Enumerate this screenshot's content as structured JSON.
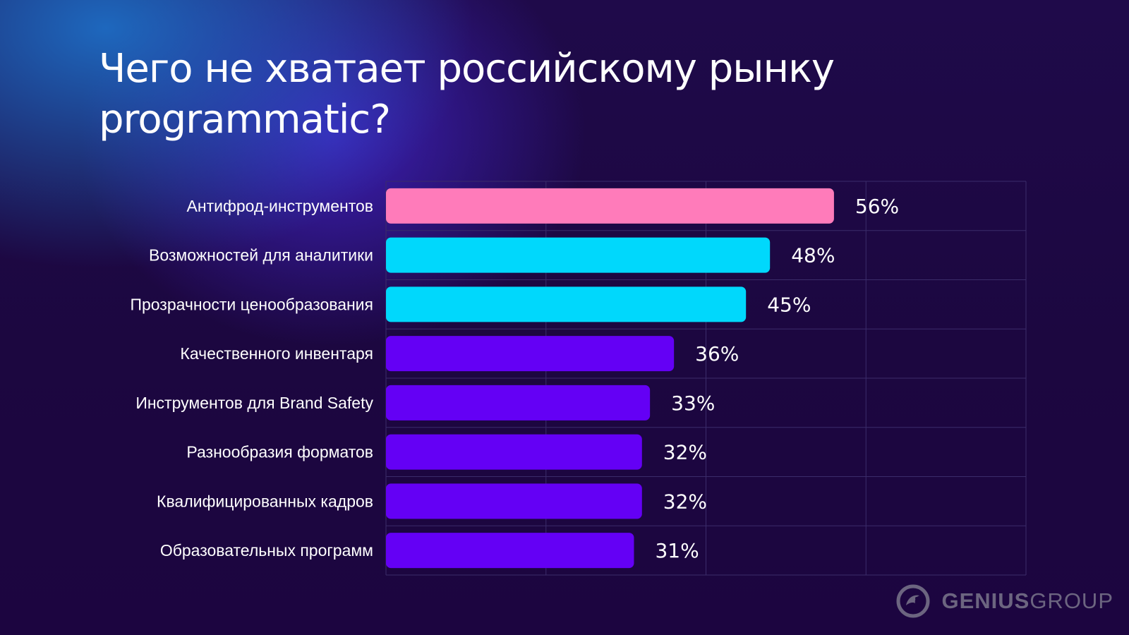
{
  "title": "Чего не хватает российскому рынку programmatic?",
  "logo": {
    "part1": "GENIUS",
    "part2": "GROUP",
    "icon": "bird-circle-icon"
  },
  "colors": {
    "pink": "#ff7bba",
    "cyan": "#00d8fc",
    "purple": "#6400f5",
    "grid": "#3b2c6a"
  },
  "chart_data": {
    "type": "bar",
    "orientation": "horizontal",
    "title": "Чего не хватает российскому рынку programmatic?",
    "xlabel": "",
    "ylabel": "",
    "xlim": [
      0,
      80
    ],
    "grid": true,
    "categories": [
      "Антифрод-инструментов",
      "Возможностей для аналитики",
      "Прозрачности ценообразования",
      "Качественного инвентаря",
      "Инструментов для Brand Safety",
      "Разнообразия форматов",
      "Квалифицированных кадров",
      "Образовательных программ"
    ],
    "values": [
      56,
      48,
      45,
      36,
      33,
      32,
      32,
      31
    ],
    "value_labels": [
      "56%",
      "48%",
      "45%",
      "36%",
      "33%",
      "32%",
      "32%",
      "31%"
    ],
    "bar_colors": [
      "#ff7bba",
      "#00d8fc",
      "#00d8fc",
      "#6400f5",
      "#6400f5",
      "#6400f5",
      "#6400f5",
      "#6400f5"
    ]
  }
}
